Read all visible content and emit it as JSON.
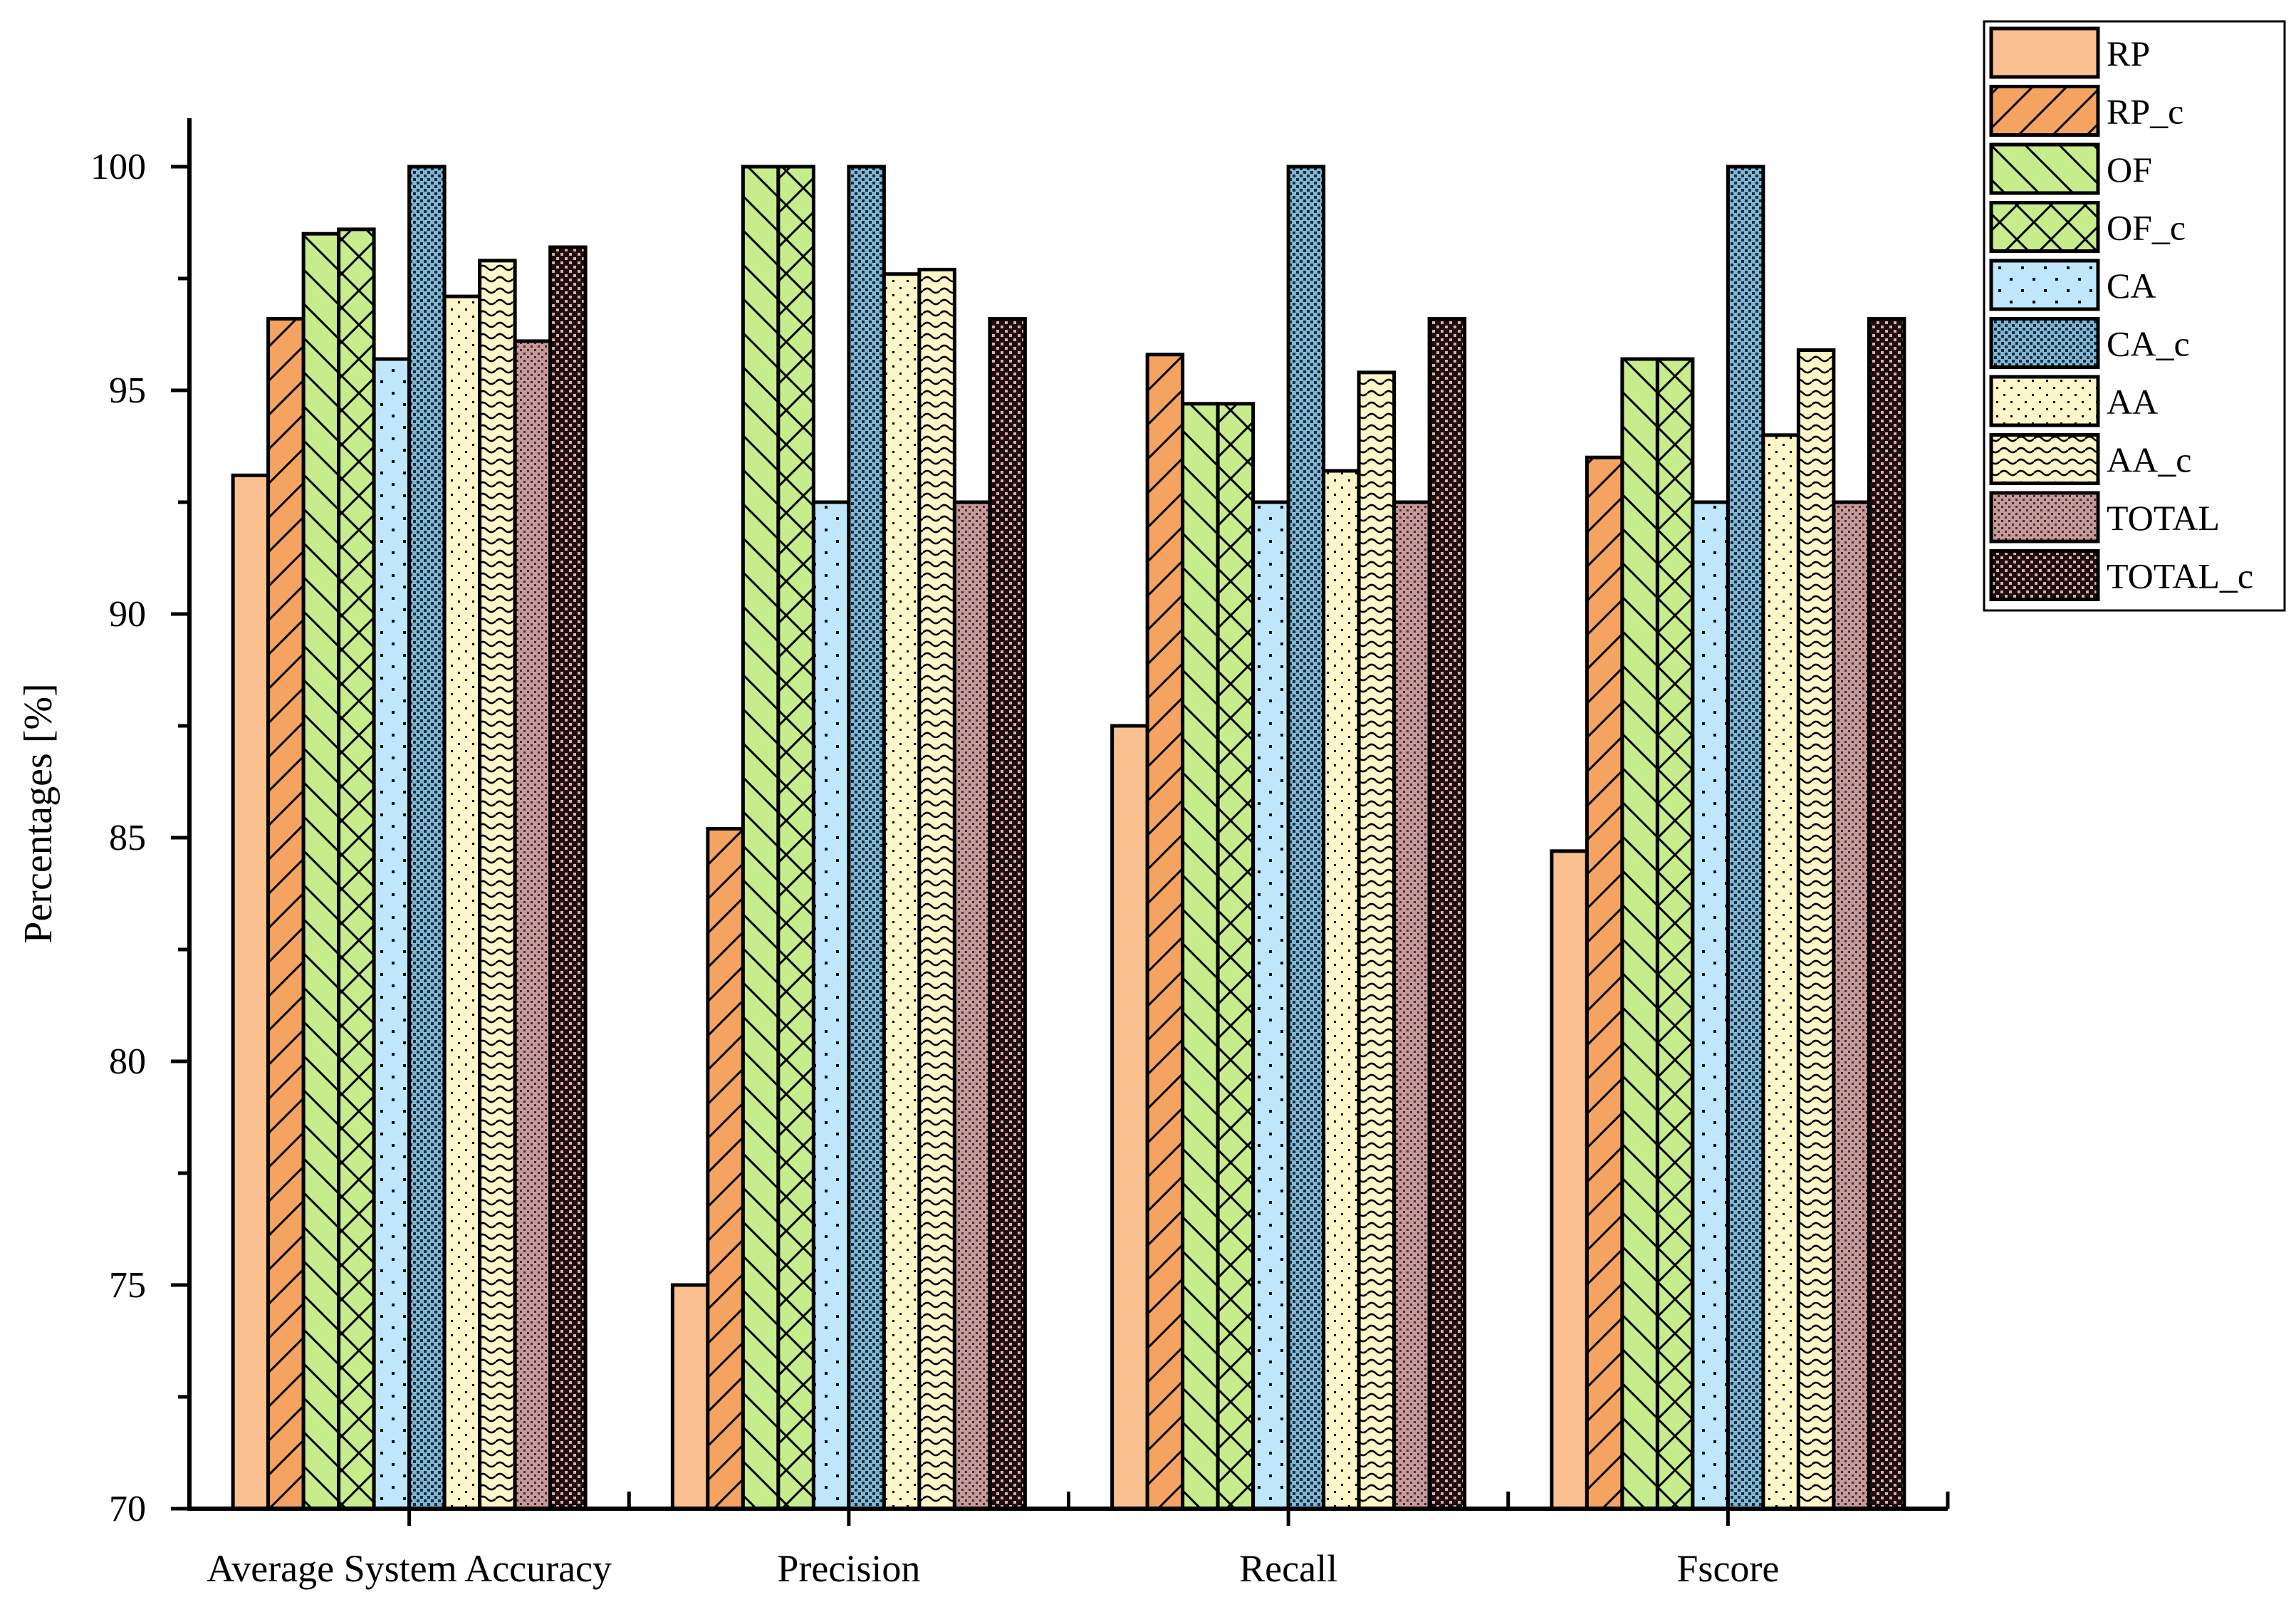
{
  "chart_data": {
    "type": "bar",
    "title": "",
    "xlabel": "",
    "ylabel": "Percentages [%]",
    "ylim": [
      70,
      100
    ],
    "yticks": [
      70,
      75,
      80,
      85,
      90,
      95,
      100
    ],
    "categories": [
      "Average System Accuracy",
      "Precision",
      "Recall",
      "Fscore"
    ],
    "legend_position": "top-right",
    "series": [
      {
        "name": "RP",
        "color": "#FAC090",
        "pattern": "solid",
        "values": [
          93.1,
          75.0,
          87.5,
          84.7
        ]
      },
      {
        "name": "RP_c",
        "color": "#F4A460",
        "pattern": "diag-up",
        "values": [
          96.6,
          85.2,
          95.8,
          93.5
        ]
      },
      {
        "name": "OF",
        "color": "#C6EC8C",
        "pattern": "diag-down",
        "values": [
          98.5,
          100.0,
          94.7,
          95.7
        ]
      },
      {
        "name": "OF_c",
        "color": "#C6EC8C",
        "pattern": "cross",
        "values": [
          98.6,
          100.0,
          94.7,
          95.7
        ]
      },
      {
        "name": "CA",
        "color": "#BFE6FA",
        "pattern": "sparse-dots",
        "values": [
          95.7,
          92.5,
          92.5,
          92.5
        ]
      },
      {
        "name": "CA_c",
        "color": "#A9D8F2",
        "pattern": "dense-dots",
        "values": [
          100.0,
          100.0,
          100.0,
          100.0
        ]
      },
      {
        "name": "AA",
        "color": "#FDF6C8",
        "pattern": "dots",
        "values": [
          97.1,
          97.6,
          93.2,
          94.0
        ]
      },
      {
        "name": "AA_c",
        "color": "#FDF6C8",
        "pattern": "wave",
        "values": [
          97.9,
          97.7,
          95.4,
          95.9
        ]
      },
      {
        "name": "TOTAL",
        "color": "#C49A9A",
        "pattern": "check",
        "values": [
          96.1,
          92.5,
          92.5,
          92.5
        ]
      },
      {
        "name": "TOTAL_c",
        "color": "#3A2020",
        "pattern": "dark-dots",
        "values": [
          98.2,
          96.6,
          96.6,
          96.6
        ]
      }
    ]
  }
}
